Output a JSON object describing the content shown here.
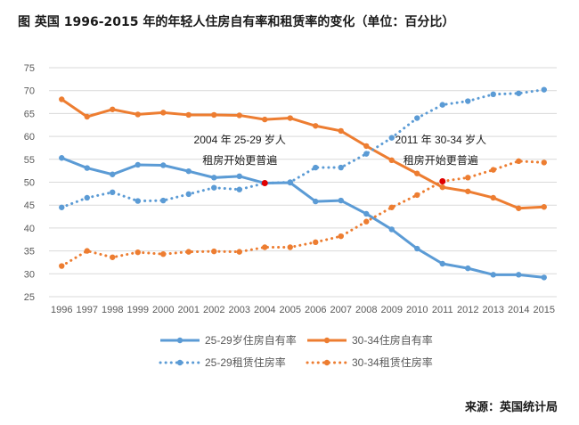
{
  "title": "图  英国 1996-2015 年的年轻人住房自有率和租赁率的变化（单位：百分比）",
  "source": "来源：英国统计局",
  "colors": {
    "blue": "#5b9bd5",
    "orange": "#ed7d31",
    "grid": "#d9d9d9",
    "marker": "#e00000",
    "text": "#595959"
  },
  "chart_data": {
    "type": "line",
    "categories": [
      "1996",
      "1997",
      "1998",
      "1999",
      "2000",
      "2001",
      "2002",
      "2003",
      "2004",
      "2005",
      "2006",
      "2007",
      "2008",
      "2009",
      "2010",
      "2011",
      "2012",
      "2013",
      "2014",
      "2015"
    ],
    "ylim": [
      25,
      75
    ],
    "yticks": [
      25,
      30,
      35,
      40,
      45,
      50,
      55,
      60,
      65,
      70,
      75
    ],
    "grid": true,
    "legend_position": "bottom",
    "series": [
      {
        "name": "25-29岁住房自有率",
        "color": "#5b9bd5",
        "style": "solid",
        "values": [
          55.3,
          53.1,
          51.7,
          53.8,
          53.7,
          52.4,
          51.0,
          51.3,
          49.8,
          49.9,
          45.8,
          46.0,
          43.1,
          39.7,
          35.5,
          32.2,
          31.2,
          29.8,
          29.8,
          29.2
        ]
      },
      {
        "name": "30-34住房自有率",
        "color": "#ed7d31",
        "style": "solid",
        "values": [
          68.1,
          64.3,
          65.9,
          64.8,
          65.2,
          64.7,
          64.7,
          64.6,
          63.7,
          64.0,
          62.3,
          61.2,
          57.9,
          54.8,
          51.9,
          48.9,
          48.0,
          46.6,
          44.3,
          44.6
        ]
      },
      {
        "name": "25-29租赁住房率",
        "color": "#5b9bd5",
        "style": "dotted",
        "values": [
          44.5,
          46.6,
          47.8,
          45.9,
          46.0,
          47.4,
          48.8,
          48.4,
          49.8,
          50.0,
          53.2,
          53.2,
          56.2,
          59.7,
          64.0,
          66.9,
          67.7,
          69.2,
          69.4,
          70.2
        ]
      },
      {
        "name": "30-34租赁住房率",
        "color": "#ed7d31",
        "style": "dotted",
        "values": [
          31.7,
          35.0,
          33.6,
          34.7,
          34.3,
          34.8,
          34.9,
          34.8,
          35.8,
          35.8,
          36.9,
          38.2,
          41.4,
          44.5,
          47.2,
          50.2,
          51.0,
          52.7,
          54.6,
          54.3
        ]
      }
    ],
    "annotations": [
      {
        "text1": "2004 年 25-29 岁人",
        "text2": "租房开始更普遍",
        "marker_x": "2004",
        "marker_y": 49.8
      },
      {
        "text1": "2011 年 30-34 岁人",
        "text2": "租房开始更普遍",
        "marker_x": "2011",
        "marker_y": 50.2
      }
    ]
  }
}
